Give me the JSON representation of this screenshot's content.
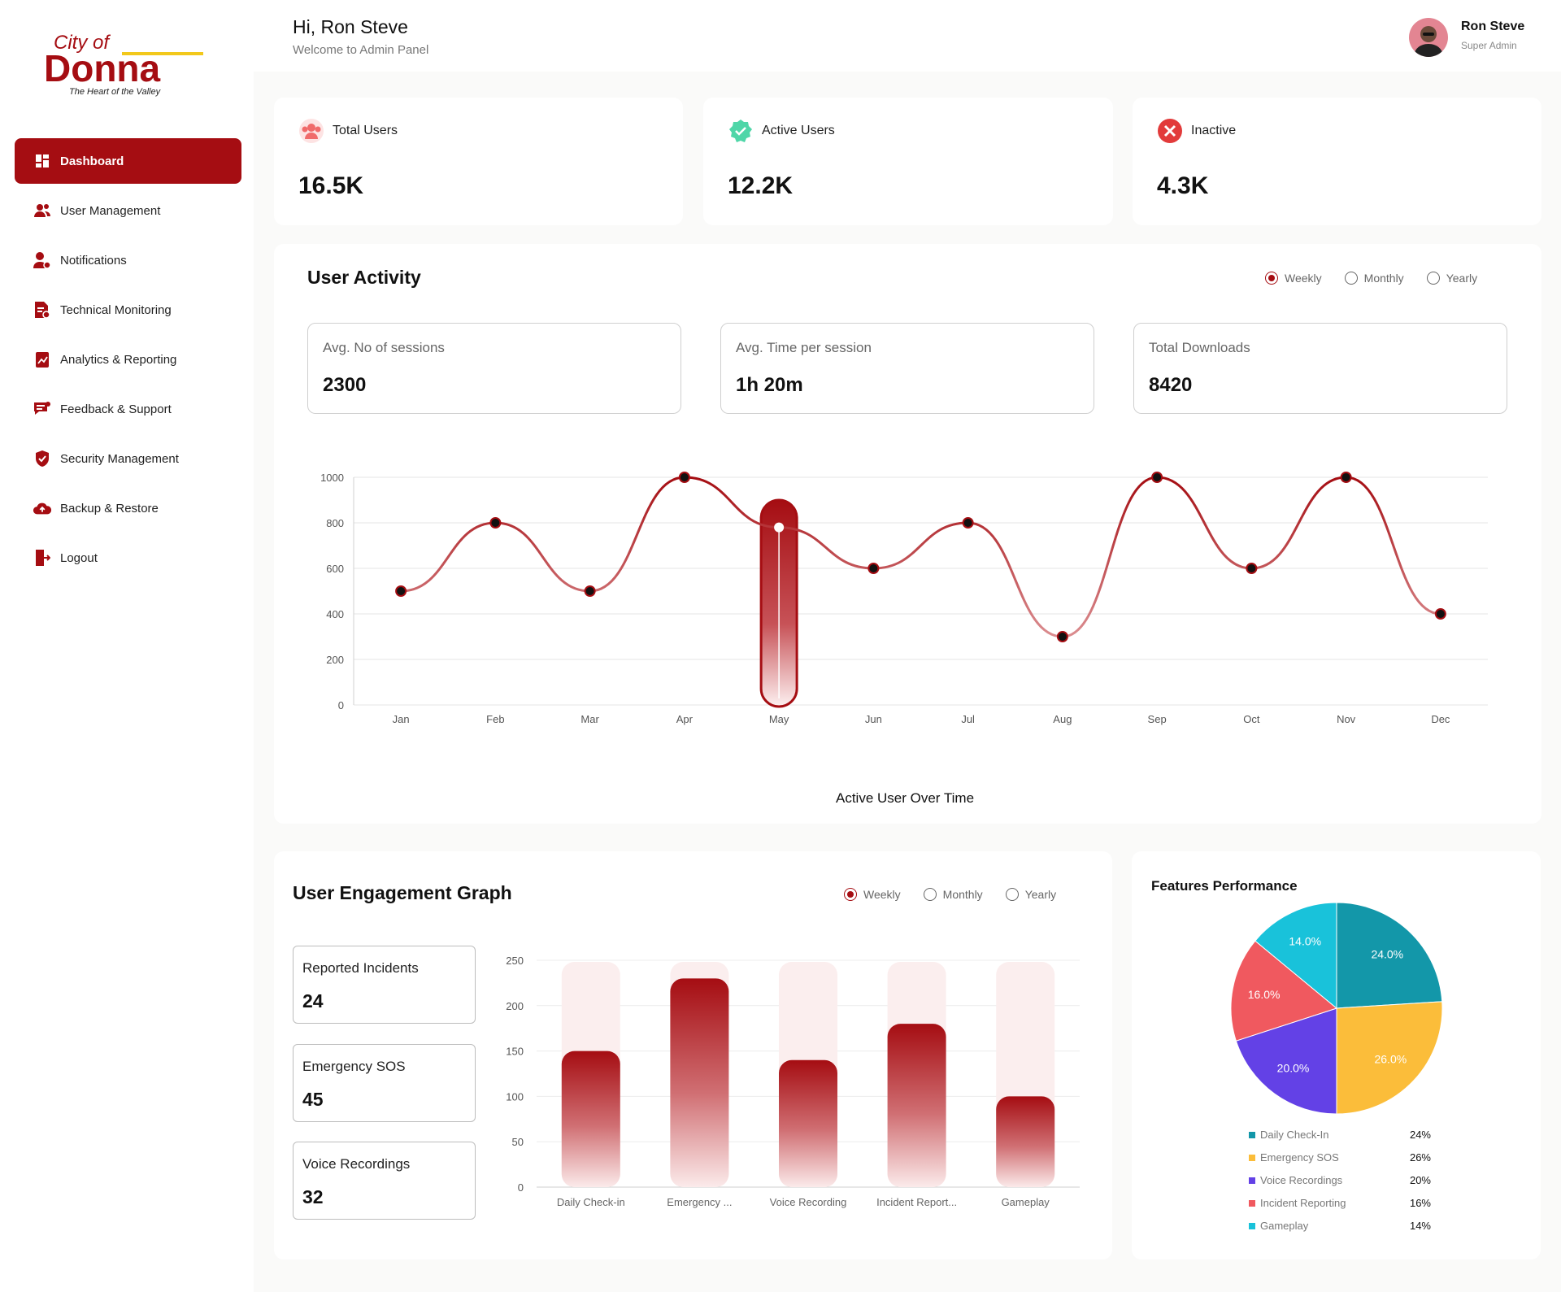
{
  "brand": {
    "logo_top": "City of",
    "logo_main": "Donna",
    "logo_tagline": "The Heart of the Valley"
  },
  "sidebar": {
    "items": [
      {
        "label": "Dashboard",
        "icon": "dashboard-icon",
        "active": true
      },
      {
        "label": "User Management",
        "icon": "users-icon"
      },
      {
        "label": "Notifications",
        "icon": "notification-user-icon"
      },
      {
        "label": "Technical Monitoring",
        "icon": "report-monitor-icon"
      },
      {
        "label": "Analytics & Reporting",
        "icon": "analytics-icon"
      },
      {
        "label": "Feedback & Support",
        "icon": "feedback-icon"
      },
      {
        "label": "Security Management",
        "icon": "shield-icon"
      },
      {
        "label": "Backup & Restore",
        "icon": "cloud-upload-icon"
      },
      {
        "label": "Logout",
        "icon": "logout-icon"
      }
    ]
  },
  "header": {
    "greeting": "Hi, Ron Steve",
    "subtitle": "Welcome to Admin Panel",
    "user_name": "Ron Steve",
    "user_role": "Super Admin"
  },
  "stats": [
    {
      "label": "Total Users",
      "value": "16.5K",
      "icon": "users-group-icon",
      "color": "#f06a6a"
    },
    {
      "label": "Active Users",
      "value": "12.2K",
      "icon": "check-badge-icon",
      "color": "#4fd6a8"
    },
    {
      "label": "Inactive",
      "value": "4.3K",
      "icon": "close-circle-icon",
      "color": "#e23b3b"
    }
  ],
  "activity": {
    "title": "User Activity",
    "filters": [
      "Weekly",
      "Monthly",
      "Yearly"
    ],
    "selected_filter": "Weekly",
    "metrics": [
      {
        "label": "Avg. No of sessions",
        "value": "2300"
      },
      {
        "label": "Avg. Time per session",
        "value": "1h 20m"
      },
      {
        "label": "Total Downloads",
        "value": "8420"
      }
    ]
  },
  "engagement": {
    "title": "User Engagement Graph",
    "filters": [
      "Weekly",
      "Monthly",
      "Yearly"
    ],
    "selected_filter": "Weekly",
    "metrics": [
      {
        "label": "Reported Incidents",
        "value": "24"
      },
      {
        "label": "Emergency SOS",
        "value": "45"
      },
      {
        "label": "Voice Recordings",
        "value": "32"
      }
    ]
  },
  "features": {
    "title": "Features Performance",
    "legend": [
      {
        "label": "Daily Check-In",
        "pct": "24%",
        "color": "#1397a9"
      },
      {
        "label": "Emergency SOS",
        "pct": "26%",
        "color": "#fbbd3a"
      },
      {
        "label": "Voice Recordings",
        "pct": "20%",
        "color": "#6341e6"
      },
      {
        "label": "Incident Reporting",
        "pct": "16%",
        "color": "#f0595f"
      },
      {
        "label": "Gameplay",
        "pct": "14%",
        "color": "#19c2da"
      }
    ]
  },
  "chart_data": [
    {
      "type": "line",
      "title": "",
      "xlabel": "Active User Over Time",
      "ylabel": "",
      "categories": [
        "Jan",
        "Feb",
        "Mar",
        "Apr",
        "May",
        "Jun",
        "Jul",
        "Aug",
        "Sep",
        "Oct",
        "Nov",
        "Dec"
      ],
      "values": [
        500,
        800,
        500,
        1000,
        780,
        600,
        800,
        300,
        1000,
        600,
        1000,
        400
      ],
      "ylim": [
        0,
        1000
      ],
      "yticks": [
        0,
        200,
        400,
        600,
        800,
        1000
      ],
      "highlight": "May",
      "color": "#a50d12",
      "grid": true
    },
    {
      "type": "bar",
      "categories": [
        "Daily Check-in",
        "Emergency ...",
        "Voice Recording",
        "Incident Report...",
        "Gameplay"
      ],
      "values": [
        150,
        230,
        140,
        180,
        100
      ],
      "ylim": [
        0,
        250
      ],
      "yticks": [
        0,
        50,
        100,
        150,
        200,
        250
      ],
      "color": "#a50d12",
      "grid": true
    },
    {
      "type": "pie",
      "title": "Features Performance",
      "categories": [
        "Daily Check-In",
        "Emergency SOS",
        "Voice Recordings",
        "Incident Reporting",
        "Gameplay"
      ],
      "values": [
        24,
        26,
        20,
        16,
        14
      ],
      "labels": [
        "24.0%",
        "26.0%",
        "20.0%",
        "16.0%",
        "14.0%"
      ],
      "colors": [
        "#1397a9",
        "#fbbd3a",
        "#6341e6",
        "#f0595f",
        "#19c2da"
      ]
    }
  ]
}
